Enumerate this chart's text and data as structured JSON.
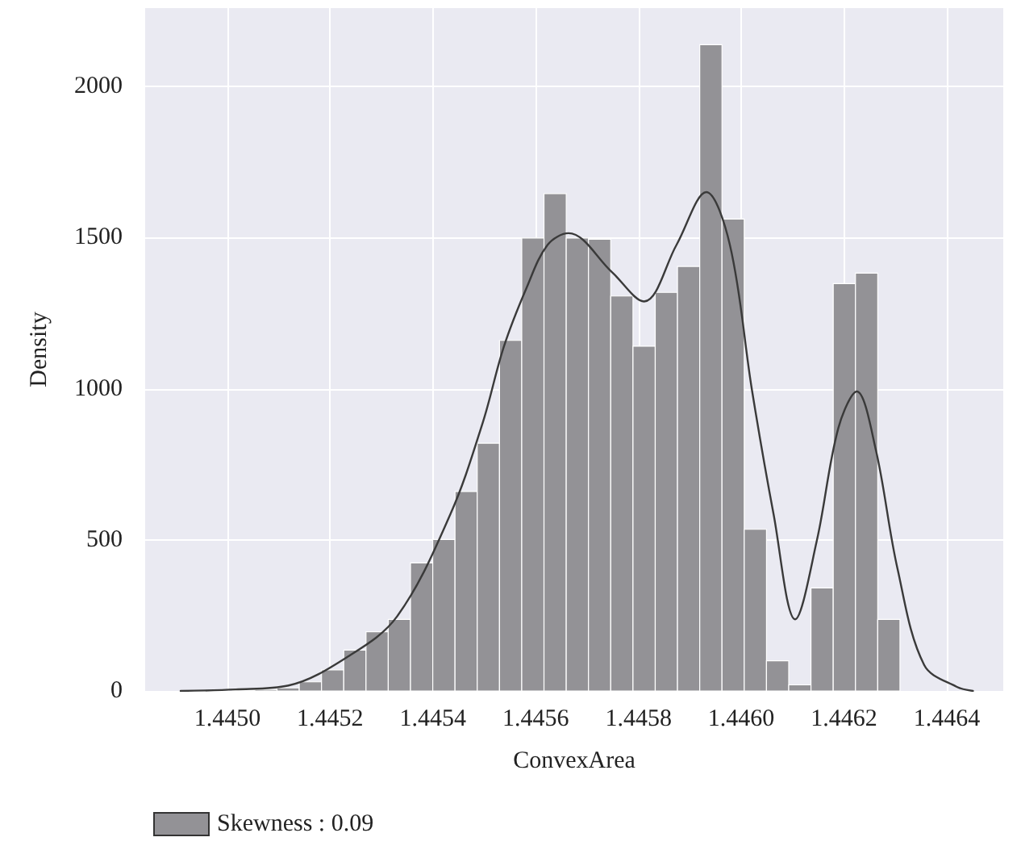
{
  "chart_data": {
    "type": "histogram",
    "xlabel": "ConvexArea",
    "ylabel": "Density",
    "bins": [
      1.44501,
      1.4450533,
      1.4450966,
      1.4451399,
      1.4451832,
      1.4452265,
      1.4452698,
      1.4453131,
      1.4453564,
      1.4453997,
      1.445443,
      1.4454863,
      1.4455296,
      1.4455729,
      1.4456162,
      1.4456595,
      1.4457028,
      1.4457461,
      1.4457894,
      1.4458327,
      1.445876,
      1.4459193,
      1.4459626,
      1.4460059,
      1.4460492,
      1.4460925,
      1.4461358,
      1.4461791,
      1.4462224,
      1.4462657,
      1.446309
    ],
    "series": [
      {
        "name": "Skewness : 0.09",
        "color": "#939296",
        "values": [
          3,
          5,
          10,
          30,
          70,
          135,
          196,
          237,
          424,
          501,
          660,
          820,
          1160,
          1499,
          1646,
          1499,
          1495,
          1307,
          1141,
          1319,
          1405,
          2139,
          1562,
          535,
          100,
          20,
          341,
          1348,
          1383,
          237
        ]
      },
      {
        "type": "line",
        "color": "#3a3a3a",
        "marker": "none",
        "line_style": "solid",
        "x": [
          1.444909,
          1.445016,
          1.445119,
          1.445233,
          1.44533,
          1.445434,
          1.445497,
          1.445538,
          1.445582,
          1.445623,
          1.445664,
          1.445748,
          1.445811,
          1.445874,
          1.445932,
          1.445978,
          1.446021,
          1.446063,
          1.446105,
          1.446147,
          1.446189,
          1.446225,
          1.446262,
          1.446304,
          1.446356,
          1.446419,
          1.446451
        ],
        "values": [
          0,
          5,
          18,
          112,
          246,
          585,
          888,
          1139,
          1333,
          1476,
          1515,
          1387,
          1289,
          1476,
          1651,
          1476,
          995,
          585,
          237,
          496,
          870,
          991,
          798,
          406,
          86,
          14,
          0
        ]
      }
    ],
    "xlim": [
      1.44484,
      1.44651
    ],
    "xticks": [
      {
        "value": 1.445,
        "label": "1.4450"
      },
      1.4452,
      1.4454,
      1.4456,
      1.4458,
      {
        "value": 1.446,
        "label": "1.4460"
      },
      1.4462,
      1.4464
    ],
    "ylim": [
      0,
      2260
    ],
    "yticks": [
      0,
      500,
      1000,
      1500,
      2000
    ],
    "grid": true,
    "legend": "bottom left"
  }
}
